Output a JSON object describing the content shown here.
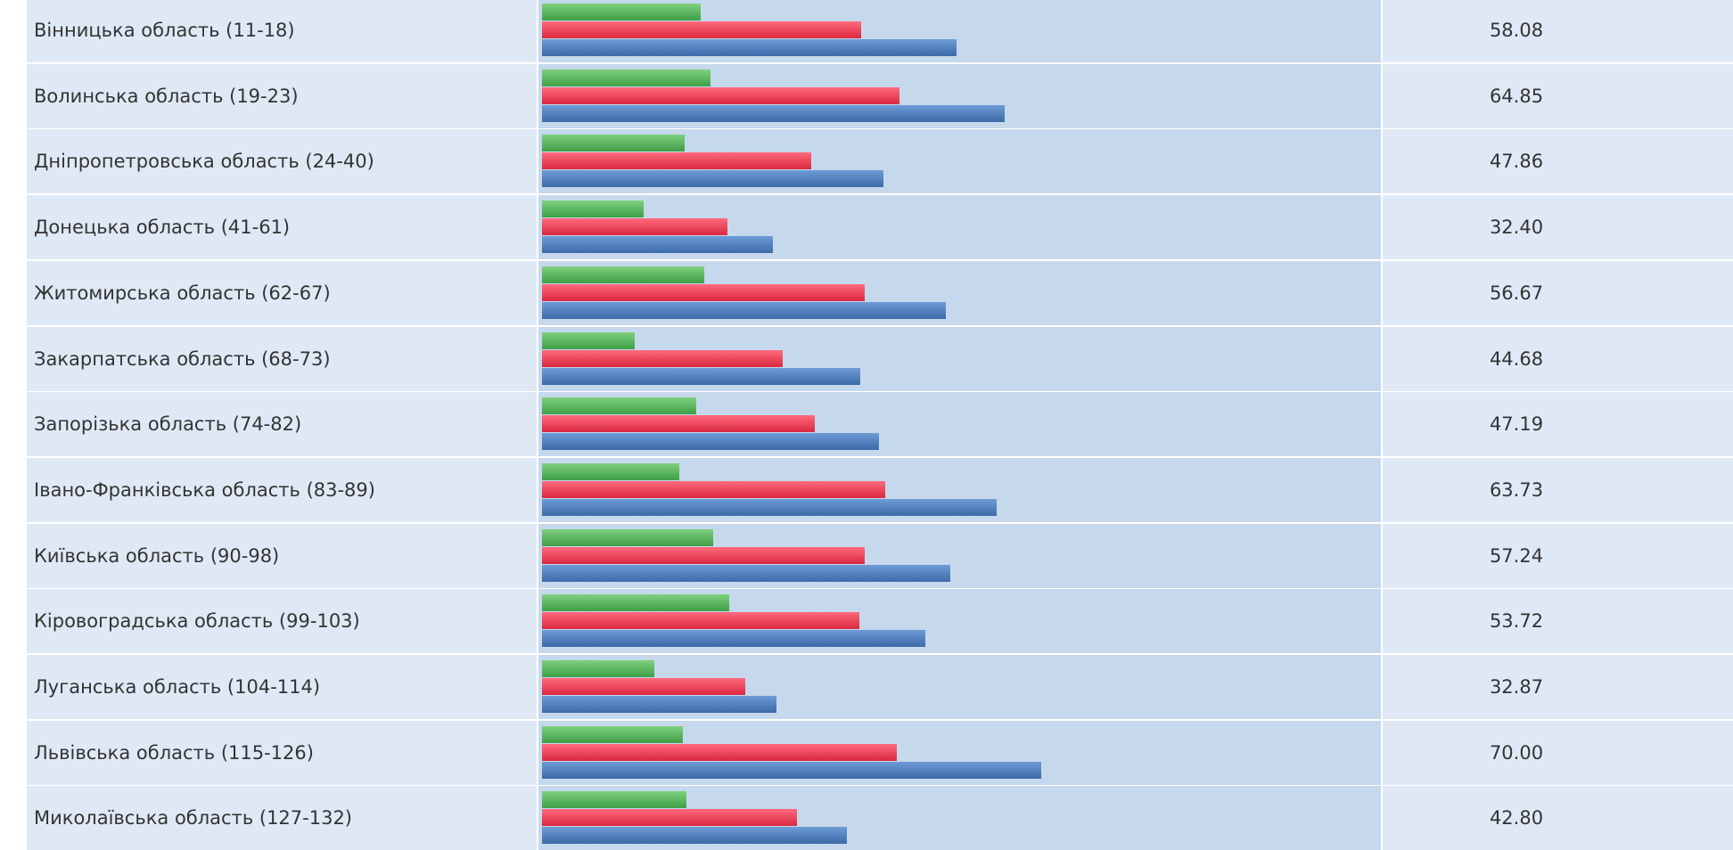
{
  "rows": [
    {
      "region": "Вінницька область (11-18)",
      "green": 22.2,
      "red": 44.8,
      "value": 58.08,
      "value_label": "58.08"
    },
    {
      "region": "Волинська область (19-23)",
      "green": 23.6,
      "red": 50.1,
      "value": 64.85,
      "value_label": "64.85"
    },
    {
      "region": "Дніпропетровська область (24-40)",
      "green": 20.0,
      "red": 37.8,
      "value": 47.86,
      "value_label": "47.86"
    },
    {
      "region": "Донецька область (41-61)",
      "green": 14.3,
      "red": 26.0,
      "value": 32.4,
      "value_label": "32.40"
    },
    {
      "region": "Житомирська область (62-67)",
      "green": 22.8,
      "red": 45.3,
      "value": 56.67,
      "value_label": "56.67"
    },
    {
      "region": "Закарпатська область (68-73)",
      "green": 13.0,
      "red": 33.8,
      "value": 44.68,
      "value_label": "44.68"
    },
    {
      "region": "Запорізька область (74-82)",
      "green": 21.6,
      "red": 38.3,
      "value": 47.19,
      "value_label": "47.19"
    },
    {
      "region": "Івано-Франківська область (83-89)",
      "green": 19.2,
      "red": 48.1,
      "value": 63.73,
      "value_label": "63.73"
    },
    {
      "region": "Київська область (90-98)",
      "green": 24.0,
      "red": 45.3,
      "value": 57.24,
      "value_label": "57.24"
    },
    {
      "region": "Кіровоградська область (99-103)",
      "green": 26.2,
      "red": 44.5,
      "value": 53.72,
      "value_label": "53.72"
    },
    {
      "region": "Луганська область (104-114)",
      "green": 15.8,
      "red": 28.5,
      "value": 32.87,
      "value_label": "32.87"
    },
    {
      "region": "Львівська область (115-126)",
      "green": 19.7,
      "red": 49.8,
      "value": 70,
      "value_label": "70.00"
    },
    {
      "region": "Миколаївська область (127-132)",
      "green": 20.3,
      "red": 35.8,
      "value": 42.8,
      "value_label": "42.80"
    }
  ]
}
